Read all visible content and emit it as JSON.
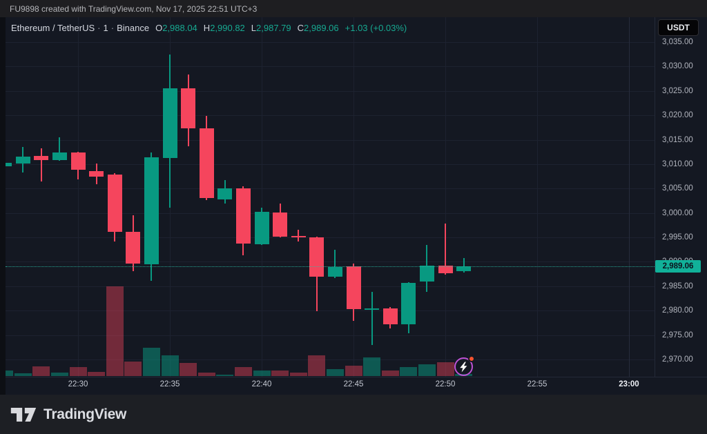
{
  "top_bar": {
    "attribution": "FU9898 created with TradingView.com, Nov 17, 2025 22:51 UTC+3"
  },
  "toolbar": {
    "currency_button": "USDT"
  },
  "legend": {
    "pair": "Ethereum / TetherUS",
    "sep1": "·",
    "interval": "1",
    "sep2": "·",
    "exchange": "Binance",
    "o_label": "O",
    "o_value": "2,988.04",
    "h_label": "H",
    "h_value": "2,990.82",
    "l_label": "L",
    "l_value": "2,987.79",
    "c_label": "C",
    "c_value": "2,989.06",
    "change": "+1.03 (+0.03%)"
  },
  "price_axis": {
    "last_price_label": "2,989.06",
    "ticks": [
      {
        "value": 3035,
        "text": "3,035.00"
      },
      {
        "value": 3030,
        "text": "3,030.00"
      },
      {
        "value": 3025,
        "text": "3,025.00"
      },
      {
        "value": 3020,
        "text": "3,020.00"
      },
      {
        "value": 3015,
        "text": "3,015.00"
      },
      {
        "value": 3010,
        "text": "3,010.00"
      },
      {
        "value": 3005,
        "text": "3,005.00"
      },
      {
        "value": 3000,
        "text": "3,000.00"
      },
      {
        "value": 2995,
        "text": "2,995.00"
      },
      {
        "value": 2990,
        "text": "2,990.00"
      },
      {
        "value": 2985,
        "text": "2,985.00"
      },
      {
        "value": 2980,
        "text": "2,980.00"
      },
      {
        "value": 2975,
        "text": "2,975.00"
      },
      {
        "value": 2970,
        "text": "2,970.00"
      }
    ]
  },
  "time_axis": {
    "ticks": [
      {
        "label": "22:30",
        "minute_index": 4,
        "bold": false
      },
      {
        "label": "22:35",
        "minute_index": 9,
        "bold": false
      },
      {
        "label": "22:40",
        "minute_index": 14,
        "bold": false
      },
      {
        "label": "22:45",
        "minute_index": 19,
        "bold": false
      },
      {
        "label": "22:50",
        "minute_index": 24,
        "bold": false
      },
      {
        "label": "22:55",
        "minute_index": 29,
        "bold": false
      },
      {
        "label": "23:00",
        "minute_index": 34,
        "bold": true
      }
    ]
  },
  "chart_data": {
    "type": "candlestick_with_volume",
    "title": "Ethereum / TetherUS · 1 · Binance",
    "interval": "1 minute",
    "last_price": 2989.06,
    "visible_price_range": [
      2966.5,
      3040.0
    ],
    "volume_unit": "relative (max spike = 130)",
    "candles": [
      {
        "t": "22:26",
        "o": 3009.5,
        "h": 3010.5,
        "l": 3009.3,
        "c": 3010.3,
        "v": 8
      },
      {
        "t": "22:27",
        "o": 3010.1,
        "h": 3013.5,
        "l": 3008.3,
        "c": 3011.6,
        "v": 4
      },
      {
        "t": "22:28",
        "o": 3011.7,
        "h": 3013.2,
        "l": 3006.4,
        "c": 3010.8,
        "v": 14
      },
      {
        "t": "22:29",
        "o": 3010.9,
        "h": 3015.5,
        "l": 3010.7,
        "c": 3012.4,
        "v": 5
      },
      {
        "t": "22:30",
        "o": 3012.4,
        "h": 3012.6,
        "l": 3006.9,
        "c": 3008.9,
        "v": 13
      },
      {
        "t": "22:31",
        "o": 3008.6,
        "h": 3010.2,
        "l": 3005.9,
        "c": 3007.4,
        "v": 6
      },
      {
        "t": "22:32",
        "o": 3007.9,
        "h": 3008.2,
        "l": 2994.2,
        "c": 2996.1,
        "v": 130
      },
      {
        "t": "22:33",
        "o": 2996.2,
        "h": 2999.6,
        "l": 2988.1,
        "c": 2989.6,
        "v": 21
      },
      {
        "t": "22:34",
        "o": 2989.5,
        "h": 3012.4,
        "l": 2986.1,
        "c": 3011.4,
        "v": 41
      },
      {
        "t": "22:35",
        "o": 3011.2,
        "h": 3032.5,
        "l": 3001.1,
        "c": 3025.5,
        "v": 30
      },
      {
        "t": "22:36",
        "o": 3025.5,
        "h": 3028.3,
        "l": 3013.7,
        "c": 3017.4,
        "v": 19
      },
      {
        "t": "22:37",
        "o": 3017.4,
        "h": 3019.9,
        "l": 3002.6,
        "c": 3003.0,
        "v": 5
      },
      {
        "t": "22:38",
        "o": 3002.8,
        "h": 3006.8,
        "l": 3001.9,
        "c": 3005.1,
        "v": 2
      },
      {
        "t": "22:39",
        "o": 3005.1,
        "h": 3005.4,
        "l": 2991.4,
        "c": 2993.8,
        "v": 13
      },
      {
        "t": "22:40",
        "o": 2993.6,
        "h": 3001.1,
        "l": 2993.4,
        "c": 3000.3,
        "v": 8
      },
      {
        "t": "22:41",
        "o": 3000.1,
        "h": 3002.0,
        "l": 2995.0,
        "c": 2995.2,
        "v": 8
      },
      {
        "t": "22:42",
        "o": 2995.3,
        "h": 2996.6,
        "l": 2994.1,
        "c": 2995.0,
        "v": 5
      },
      {
        "t": "22:43",
        "o": 2995.0,
        "h": 2995.2,
        "l": 2979.9,
        "c": 2987.0,
        "v": 30
      },
      {
        "t": "22:44",
        "o": 2986.9,
        "h": 2992.4,
        "l": 2986.7,
        "c": 2988.9,
        "v": 10
      },
      {
        "t": "22:45",
        "o": 2989.1,
        "h": 2989.6,
        "l": 2977.9,
        "c": 2980.3,
        "v": 15
      },
      {
        "t": "22:46",
        "o": 2980.2,
        "h": 2983.9,
        "l": 2973.0,
        "c": 2980.5,
        "v": 27
      },
      {
        "t": "22:47",
        "o": 2980.5,
        "h": 2980.7,
        "l": 2976.3,
        "c": 2977.2,
        "v": 8
      },
      {
        "t": "22:48",
        "o": 2977.2,
        "h": 2985.8,
        "l": 2975.3,
        "c": 2985.7,
        "v": 13
      },
      {
        "t": "22:49",
        "o": 2985.9,
        "h": 2993.4,
        "l": 2983.9,
        "c": 2989.2,
        "v": 17
      },
      {
        "t": "22:50",
        "o": 2989.2,
        "h": 2997.9,
        "l": 2987.4,
        "c": 2987.6,
        "v": 20
      },
      {
        "t": "22:51",
        "o": 2988.04,
        "h": 2990.82,
        "l": 2987.79,
        "c": 2989.06,
        "v": 3
      }
    ]
  },
  "footer": {
    "brand": "TradingView"
  },
  "icons": {
    "boost_icon": "lightning-bolt-in-purple-circle-with-red-notification-dot",
    "brand_mark": "tradingview-logo-mark"
  },
  "colors": {
    "up": "#089981",
    "down": "#f5455d",
    "volume_up": "rgba(8,153,129,0.5)",
    "volume_down": "rgba(245,69,93,0.42)",
    "grid": "#1d2230",
    "grid_bright": "#272c3c",
    "axis_text": "#b2b5be",
    "legend_value": "#17a991",
    "last_price_bg": "#11b199",
    "last_price_text": "#0d131d",
    "dotted_line": "#2dbfa8",
    "accent_purple": "#bf52d6"
  }
}
